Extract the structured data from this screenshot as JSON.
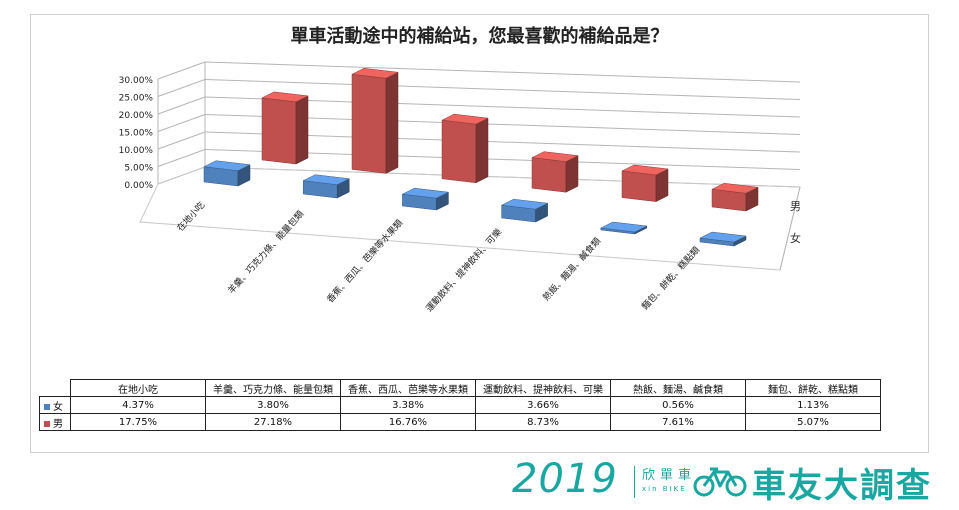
{
  "title": "單車活動途中的補給站，您最喜歡的補給品是？",
  "chart_data": {
    "type": "bar",
    "title": "單車活動途中的補給站，您最喜歡的補給品是？",
    "categories": [
      "在地小吃",
      "羊羹、巧克力條、能量包類",
      "香蕉、西瓜、芭樂等水果類",
      "運動飲料、提神飲料、可樂",
      "熱飯、麵湯、鹹食類",
      "麵包、餅乾、糕點類"
    ],
    "series": [
      {
        "name": "女",
        "values": [
          4.37,
          3.8,
          3.38,
          3.66,
          0.56,
          1.13
        ],
        "labels": [
          "4.37%",
          "3.80%",
          "3.38%",
          "3.66%",
          "0.56%",
          "1.13%"
        ],
        "color": "#4f81bd"
      },
      {
        "name": "男",
        "values": [
          17.75,
          27.18,
          16.76,
          8.73,
          7.61,
          5.07
        ],
        "labels": [
          "17.75%",
          "27.18%",
          "16.76%",
          "8.73%",
          "7.61%",
          "5.07%"
        ],
        "color": "#c0504d"
      }
    ],
    "y_ticks": [
      "0.00%",
      "5.00%",
      "10.00%",
      "15.00%",
      "20.00%",
      "25.00%",
      "30.00%"
    ],
    "ylim": [
      0,
      30
    ],
    "grid": true,
    "style": "3d-column",
    "data_table": true
  },
  "brand": {
    "year": "2019",
    "name": "欣單車",
    "sub": "xin BIKE",
    "title": "車友大調查"
  }
}
